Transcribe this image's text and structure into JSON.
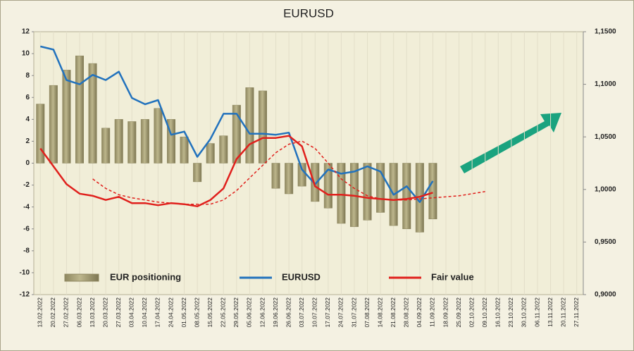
{
  "chart_data": {
    "type": "bar",
    "title": "EURUSD",
    "categories": [
      "13.02.2022",
      "20.02.2022",
      "27.02.2022",
      "06.03.2022",
      "13.03.2022",
      "20.03.2022",
      "27.03.2022",
      "03.04.2022",
      "10.04.2022",
      "17.04.2022",
      "24.04.2022",
      "01.05.2022",
      "08.05.2022",
      "15.05.2022",
      "22.05.2022",
      "29.05.2022",
      "05.06.2022",
      "12.06.2022",
      "19.06.2022",
      "26.06.2022",
      "03.07.2022",
      "10.07.2022",
      "17.07.2022",
      "24.07.2022",
      "31.07.2022",
      "07.08.2022",
      "14.08.2022",
      "21.08.2022",
      "28.08.2022",
      "04.09.2022",
      "11.09.2022",
      "18.09.2022",
      "25.09.2022",
      "02.10.2022",
      "09.10.2022",
      "16.10.2022",
      "23.10.2022",
      "30.10.2022",
      "06.11.2022",
      "13.11.2022",
      "20.11.2022",
      "27.11.2022"
    ],
    "ylim": [
      -12,
      12
    ],
    "yticks": [
      -12,
      -10,
      -8,
      -6,
      -4,
      -2,
      0,
      2,
      4,
      6,
      8,
      10,
      12
    ],
    "y2lim": [
      0.9,
      1.15
    ],
    "y2ticks": [
      {
        "value": 0.9,
        "label": "0,9000"
      },
      {
        "value": 0.95,
        "label": "0,9500"
      },
      {
        "value": 1.0,
        "label": "1,0000"
      },
      {
        "value": 1.05,
        "label": "1,0500"
      },
      {
        "value": 1.1,
        "label": "1,1000"
      },
      {
        "value": 1.15,
        "label": "1,1500"
      }
    ],
    "series": [
      {
        "name": "EUR positioning",
        "type": "bar",
        "color": "#bdb68c",
        "values": [
          5.4,
          7.1,
          8.5,
          9.8,
          9.1,
          3.2,
          4.0,
          3.8,
          4.0,
          5.0,
          4.0,
          2.4,
          -1.7,
          1.8,
          2.5,
          5.3,
          6.9,
          6.6,
          -2.3,
          -2.8,
          -2.1,
          -3.5,
          -4.1,
          -5.5,
          -5.8,
          -5.2,
          -4.5,
          -5.7,
          -6.0,
          -6.3,
          -5.1,
          null,
          null,
          null,
          null,
          null,
          null,
          null,
          null,
          null,
          null,
          null
        ]
      },
      {
        "name": "EURUSD",
        "type": "line",
        "axis": "y2",
        "color": "#2272bd",
        "values": [
          1.136,
          1.133,
          1.104,
          1.1,
          1.109,
          1.104,
          1.112,
          1.087,
          1.081,
          1.085,
          1.052,
          1.055,
          1.031,
          1.048,
          1.072,
          1.072,
          1.053,
          1.053,
          1.052,
          1.054,
          1.019,
          1.005,
          1.019,
          1.015,
          1.017,
          1.022,
          1.017,
          0.995,
          1.003,
          0.988,
          1.008,
          null,
          null,
          null,
          null,
          null,
          null,
          null,
          null,
          null,
          null,
          null
        ]
      },
      {
        "name": "Fair value",
        "type": "line",
        "axis": "y2",
        "color": "#e0201c",
        "values": [
          1.039,
          1.022,
          1.005,
          0.996,
          0.994,
          0.99,
          0.993,
          0.987,
          0.987,
          0.985,
          0.987,
          0.986,
          0.984,
          0.99,
          1.001,
          1.029,
          1.043,
          1.049,
          1.049,
          1.051,
          1.041,
          1.003,
          0.995,
          0.995,
          0.994,
          0.992,
          0.991,
          0.99,
          0.991,
          0.993,
          0.997,
          null,
          null,
          null,
          null,
          null,
          null,
          null,
          null,
          null,
          null,
          null
        ]
      },
      {
        "type": "line",
        "axis": "y2",
        "color": "#e0201c",
        "dashed": true,
        "values": [
          null,
          null,
          null,
          null,
          1.01,
          1.001,
          0.995,
          0.992,
          0.99,
          0.988,
          0.987,
          0.986,
          0.986,
          0.986,
          0.99,
          0.999,
          1.011,
          1.023,
          1.035,
          1.043,
          1.046,
          1.039,
          1.025,
          1.01,
          1.001,
          0.994,
          0.991,
          0.99,
          0.99,
          0.991,
          0.992,
          0.993,
          0.994,
          0.996,
          0.998,
          null,
          null,
          null,
          null,
          null,
          null,
          null
        ]
      }
    ]
  }
}
